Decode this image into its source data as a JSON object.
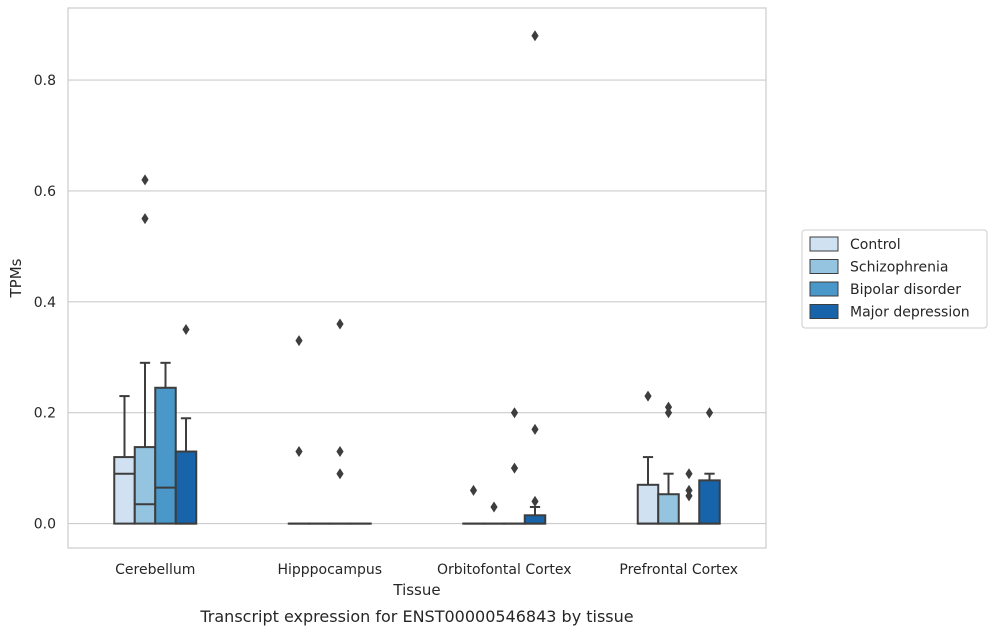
{
  "caption": "Transcript expression for ENST00000546843 by tissue",
  "chart_data": {
    "type": "box",
    "xlabel": "Tissue",
    "ylabel": "TPMs",
    "ylim": [
      -0.044,
      0.93
    ],
    "yticks": [
      0.0,
      0.2,
      0.4,
      0.6,
      0.8
    ],
    "ytick_labels": [
      "0.0",
      "0.2",
      "0.4",
      "0.6",
      "0.8"
    ],
    "grid": "horizontal",
    "legend_position": "right",
    "categories": [
      "Cerebellum",
      "Hipppocampus",
      "Orbitofontal Cortex",
      "Prefrontal Cortex"
    ],
    "series": [
      {
        "name": "Control",
        "color": "#d0e1f2",
        "boxes": [
          {
            "min": 0.0,
            "q1": 0.0,
            "median": 0.09,
            "q3": 0.12,
            "max": 0.23,
            "outliers": []
          },
          {
            "min": 0.0,
            "q1": 0.0,
            "median": 0.0,
            "q3": 0.0,
            "max": 0.0,
            "outliers": [
              0.33,
              0.13
            ]
          },
          {
            "min": 0.0,
            "q1": 0.0,
            "median": 0.0,
            "q3": 0.0,
            "max": 0.0,
            "outliers": [
              0.06
            ]
          },
          {
            "min": 0.0,
            "q1": 0.0,
            "median": 0.0,
            "q3": 0.07,
            "max": 0.12,
            "outliers": [
              0.23
            ]
          }
        ]
      },
      {
        "name": "Schizophrenia",
        "color": "#94c4df",
        "boxes": [
          {
            "min": 0.0,
            "q1": 0.0,
            "median": 0.035,
            "q3": 0.138,
            "max": 0.29,
            "outliers": [
              0.62,
              0.55
            ]
          },
          {
            "min": 0.0,
            "q1": 0.0,
            "median": 0.0,
            "q3": 0.0,
            "max": 0.0,
            "outliers": []
          },
          {
            "min": 0.0,
            "q1": 0.0,
            "median": 0.0,
            "q3": 0.0,
            "max": 0.0,
            "outliers": [
              0.03
            ]
          },
          {
            "min": 0.0,
            "q1": 0.0,
            "median": 0.0,
            "q3": 0.053,
            "max": 0.09,
            "outliers": [
              0.21,
              0.2
            ]
          }
        ]
      },
      {
        "name": "Bipolar disorder",
        "color": "#4a98c9",
        "boxes": [
          {
            "min": 0.0,
            "q1": 0.0,
            "median": 0.065,
            "q3": 0.245,
            "max": 0.29,
            "outliers": []
          },
          {
            "min": 0.0,
            "q1": 0.0,
            "median": 0.0,
            "q3": 0.0,
            "max": 0.0,
            "outliers": [
              0.36,
              0.13,
              0.09
            ]
          },
          {
            "min": 0.0,
            "q1": 0.0,
            "median": 0.0,
            "q3": 0.0,
            "max": 0.0,
            "outliers": [
              0.2,
              0.1
            ]
          },
          {
            "min": 0.0,
            "q1": 0.0,
            "median": 0.0,
            "q3": 0.0,
            "max": 0.0,
            "outliers": [
              0.09,
              0.06,
              0.05
            ]
          }
        ]
      },
      {
        "name": "Major depression",
        "color": "#1764ab",
        "boxes": [
          {
            "min": 0.0,
            "q1": 0.0,
            "median": 0.0,
            "q3": 0.13,
            "max": 0.19,
            "outliers": [
              0.35
            ]
          },
          {
            "min": 0.0,
            "q1": 0.0,
            "median": 0.0,
            "q3": 0.0,
            "max": 0.0,
            "outliers": []
          },
          {
            "min": 0.0,
            "q1": 0.0,
            "median": 0.0,
            "q3": 0.015,
            "max": 0.03,
            "outliers": [
              0.88,
              0.17,
              0.04
            ]
          },
          {
            "min": 0.0,
            "q1": 0.0,
            "median": 0.0,
            "q3": 0.078,
            "max": 0.09,
            "outliers": [
              0.2
            ]
          }
        ]
      }
    ]
  }
}
